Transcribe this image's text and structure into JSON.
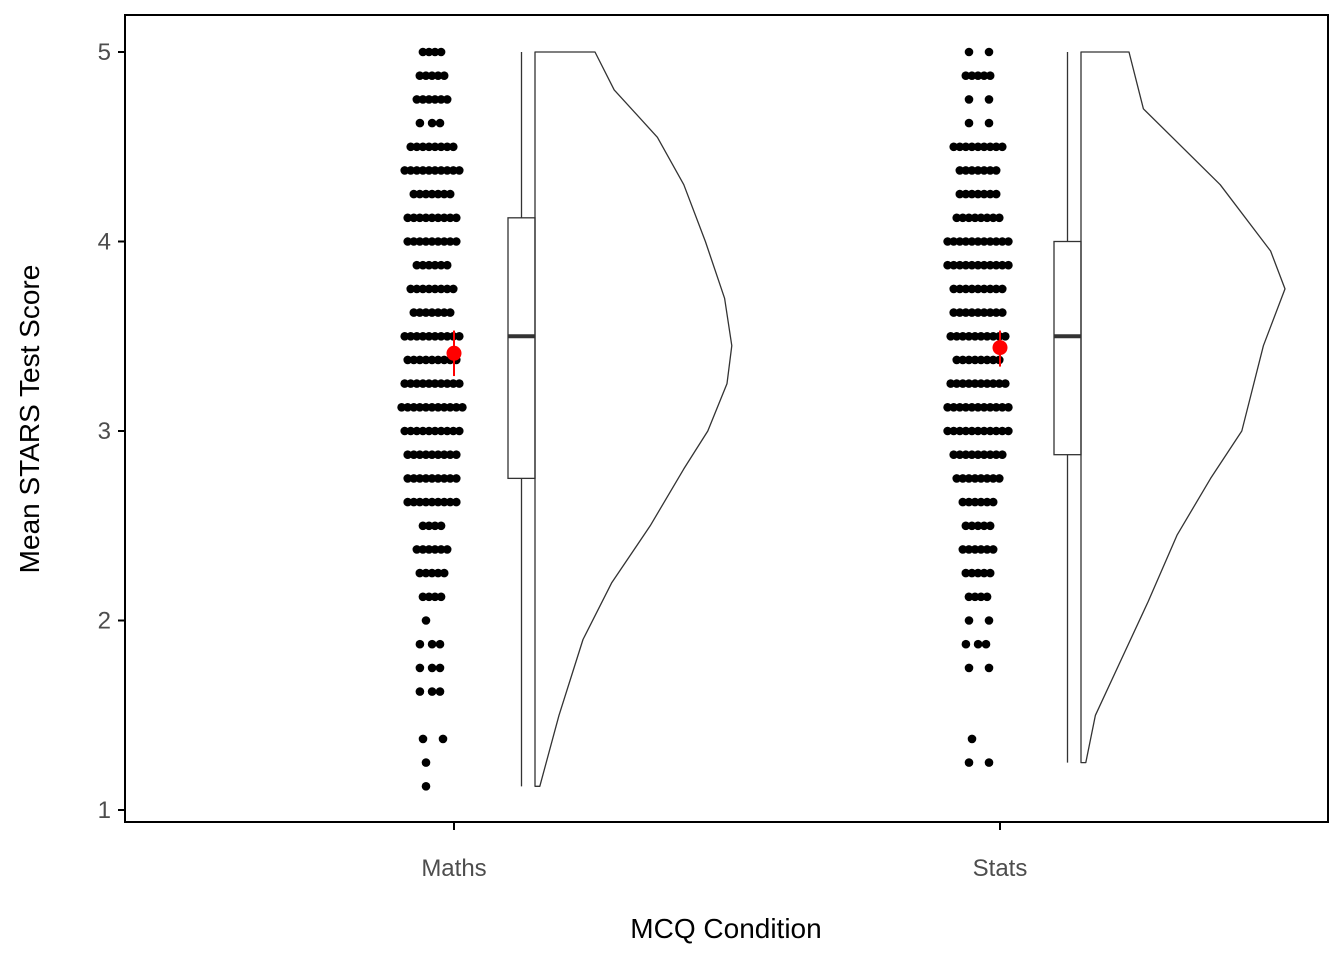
{
  "chart_data": {
    "type": "raincloud",
    "xlabel": "MCQ Condition",
    "ylabel": "Mean STARS Test Score",
    "ylim": [
      1,
      5
    ],
    "y_ticks": [
      "1",
      "2",
      "3",
      "4",
      "5"
    ],
    "categories": [
      "Maths",
      "Stats"
    ],
    "grid": false,
    "legend": "none",
    "colors": {
      "points": "#000000",
      "mean": "#ff0000",
      "outline": "#333333"
    },
    "groups": [
      {
        "name": "Maths",
        "boxplot": {
          "min": 1.125,
          "q1": 2.75,
          "median": 3.5,
          "q3": 4.125,
          "max": 5.0
        },
        "mean": 3.41,
        "mean_ci": [
          3.29,
          3.53
        ],
        "density": [
          [
            1.125,
            0.02
          ],
          [
            1.5,
            0.1
          ],
          [
            1.9,
            0.2
          ],
          [
            2.2,
            0.32
          ],
          [
            2.5,
            0.48
          ],
          [
            2.8,
            0.62
          ],
          [
            3.0,
            0.72
          ],
          [
            3.25,
            0.8
          ],
          [
            3.45,
            0.82
          ],
          [
            3.7,
            0.79
          ],
          [
            4.0,
            0.71
          ],
          [
            4.3,
            0.62
          ],
          [
            4.55,
            0.51
          ],
          [
            4.8,
            0.33
          ],
          [
            5.0,
            0.25
          ]
        ],
        "points": [
          {
            "y": 5.0,
            "n": 4
          },
          {
            "y": 4.875,
            "n": 5
          },
          {
            "y": 4.75,
            "n": 6
          },
          {
            "y": 4.625,
            "n": 3
          },
          {
            "y": 4.5,
            "n": 8
          },
          {
            "y": 4.375,
            "n": 10
          },
          {
            "y": 4.25,
            "n": 7
          },
          {
            "y": 4.125,
            "n": 9
          },
          {
            "y": 4.0,
            "n": 9
          },
          {
            "y": 3.875,
            "n": 6
          },
          {
            "y": 3.75,
            "n": 8
          },
          {
            "y": 3.625,
            "n": 7
          },
          {
            "y": 3.5,
            "n": 10
          },
          {
            "y": 3.375,
            "n": 9
          },
          {
            "y": 3.25,
            "n": 10
          },
          {
            "y": 3.125,
            "n": 11
          },
          {
            "y": 3.0,
            "n": 10
          },
          {
            "y": 2.875,
            "n": 9
          },
          {
            "y": 2.75,
            "n": 9
          },
          {
            "y": 2.625,
            "n": 9
          },
          {
            "y": 2.5,
            "n": 4
          },
          {
            "y": 2.375,
            "n": 6
          },
          {
            "y": 2.25,
            "n": 5
          },
          {
            "y": 2.125,
            "n": 4
          },
          {
            "y": 2.0,
            "n": 1
          },
          {
            "y": 1.875,
            "n": 3
          },
          {
            "y": 1.75,
            "n": 3
          },
          {
            "y": 1.625,
            "n": 3
          },
          {
            "y": 1.375,
            "n": 2
          },
          {
            "y": 1.25,
            "n": 1
          },
          {
            "y": 1.125,
            "n": 1
          }
        ]
      },
      {
        "name": "Stats",
        "boxplot": {
          "min": 1.25,
          "q1": 2.875,
          "median": 3.5,
          "q3": 4.0,
          "max": 5.0
        },
        "mean": 3.44,
        "mean_ci": [
          3.34,
          3.53
        ],
        "density": [
          [
            1.25,
            0.02
          ],
          [
            1.5,
            0.06
          ],
          [
            1.8,
            0.17
          ],
          [
            2.1,
            0.28
          ],
          [
            2.45,
            0.4
          ],
          [
            2.75,
            0.54
          ],
          [
            3.0,
            0.67
          ],
          [
            3.2,
            0.71
          ],
          [
            3.45,
            0.76
          ],
          [
            3.75,
            0.85
          ],
          [
            3.95,
            0.79
          ],
          [
            4.3,
            0.58
          ],
          [
            4.7,
            0.26
          ],
          [
            5.0,
            0.2
          ]
        ],
        "points": [
          {
            "y": 5.0,
            "n": 2
          },
          {
            "y": 4.875,
            "n": 5
          },
          {
            "y": 4.75,
            "n": 2
          },
          {
            "y": 4.625,
            "n": 2
          },
          {
            "y": 4.5,
            "n": 9
          },
          {
            "y": 4.375,
            "n": 7
          },
          {
            "y": 4.25,
            "n": 7
          },
          {
            "y": 4.125,
            "n": 8
          },
          {
            "y": 4.0,
            "n": 11
          },
          {
            "y": 3.875,
            "n": 11
          },
          {
            "y": 3.75,
            "n": 9
          },
          {
            "y": 3.625,
            "n": 9
          },
          {
            "y": 3.5,
            "n": 10
          },
          {
            "y": 3.375,
            "n": 8
          },
          {
            "y": 3.25,
            "n": 10
          },
          {
            "y": 3.125,
            "n": 11
          },
          {
            "y": 3.0,
            "n": 11
          },
          {
            "y": 2.875,
            "n": 9
          },
          {
            "y": 2.75,
            "n": 8
          },
          {
            "y": 2.625,
            "n": 6
          },
          {
            "y": 2.5,
            "n": 5
          },
          {
            "y": 2.375,
            "n": 6
          },
          {
            "y": 2.25,
            "n": 5
          },
          {
            "y": 2.125,
            "n": 4
          },
          {
            "y": 2.0,
            "n": 2
          },
          {
            "y": 1.875,
            "n": 3
          },
          {
            "y": 1.75,
            "n": 2
          },
          {
            "y": 1.375,
            "n": 1
          },
          {
            "y": 1.25,
            "n": 2
          }
        ]
      }
    ]
  }
}
